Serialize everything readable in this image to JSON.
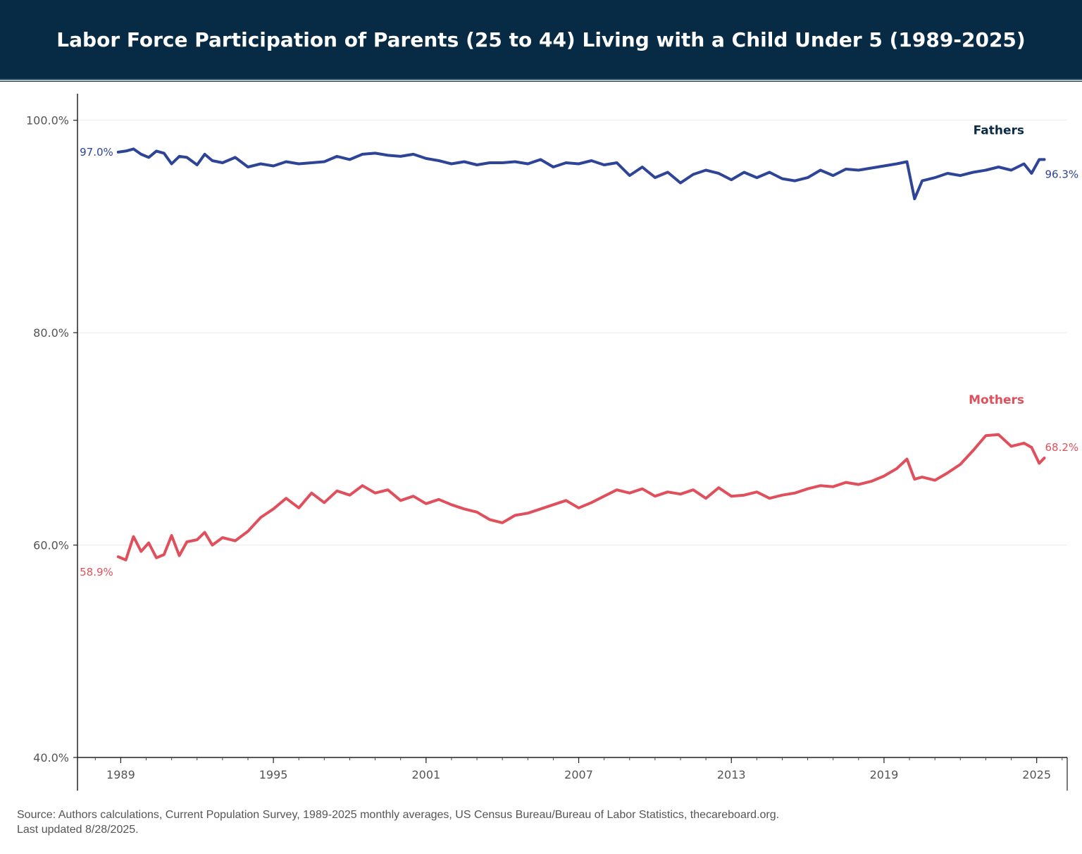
{
  "header": {
    "title": "Labor Force Participation of Parents (25 to 44) Living with a Child Under 5 (1989-2025)"
  },
  "footer": {
    "source": "Source: Authors calculations, Current Population Survey, 1989-2025 monthly averages, US Census Bureau/Bureau of Labor Statistics, thecareboard.org.",
    "updated": "Last updated 8/28/2025."
  },
  "chart_data": {
    "type": "line",
    "title": "Labor Force Participation of Parents (25 to 44) Living with a Child Under 5 (1989-2025)",
    "xlabel": "",
    "ylabel": "",
    "xlim": [
      1987.3,
      2026.2
    ],
    "ylim": [
      40,
      102.5
    ],
    "y_ticks": [
      {
        "value": 100,
        "label": "100.0%"
      },
      {
        "value": 80,
        "label": "80.0%"
      },
      {
        "value": 60,
        "label": "60.0%"
      },
      {
        "value": 40,
        "label": "40.0%"
      }
    ],
    "x_ticks": [
      {
        "value": 1989,
        "label": "1989"
      },
      {
        "value": 1995,
        "label": "1995"
      },
      {
        "value": 2001,
        "label": "2001"
      },
      {
        "value": 2007,
        "label": "2007"
      },
      {
        "value": 2013,
        "label": "2013"
      },
      {
        "value": 2019,
        "label": "2019"
      },
      {
        "value": 2025,
        "label": "2025"
      }
    ],
    "grid": "horizontal",
    "series": [
      {
        "name": "Fathers",
        "color": "#2e4496",
        "start_label": "97.0%",
        "end_label": "96.3%",
        "x": [
          1988.9,
          1989.2,
          1989.5,
          1989.8,
          1990.1,
          1990.4,
          1990.7,
          1991.0,
          1991.3,
          1991.6,
          1992.0,
          1992.3,
          1992.6,
          1993.0,
          1993.5,
          1994.0,
          1994.5,
          1995.0,
          1995.5,
          1996.0,
          1996.5,
          1997.0,
          1997.5,
          1998.0,
          1998.5,
          1999.0,
          1999.5,
          2000.0,
          2000.5,
          2001.0,
          2001.5,
          2002.0,
          2002.5,
          2003.0,
          2003.5,
          2004.0,
          2004.5,
          2005.0,
          2005.5,
          2006.0,
          2006.5,
          2007.0,
          2007.5,
          2008.0,
          2008.5,
          2009.0,
          2009.5,
          2010.0,
          2010.5,
          2011.0,
          2011.5,
          2012.0,
          2012.5,
          2013.0,
          2013.5,
          2014.0,
          2014.5,
          2015.0,
          2015.5,
          2016.0,
          2016.5,
          2017.0,
          2017.5,
          2018.0,
          2018.5,
          2019.0,
          2019.5,
          2019.9,
          2020.2,
          2020.5,
          2021.0,
          2021.5,
          2022.0,
          2022.5,
          2023.0,
          2023.5,
          2024.0,
          2024.5,
          2024.8,
          2025.1,
          2025.3
        ],
        "y": [
          97.0,
          97.1,
          97.3,
          96.8,
          96.5,
          97.1,
          96.9,
          95.9,
          96.6,
          96.5,
          95.8,
          96.8,
          96.2,
          96.0,
          96.5,
          95.6,
          95.9,
          95.7,
          96.1,
          95.9,
          96.0,
          96.1,
          96.6,
          96.3,
          96.8,
          96.9,
          96.7,
          96.6,
          96.8,
          96.4,
          96.2,
          95.9,
          96.1,
          95.8,
          96.0,
          96.0,
          96.1,
          95.9,
          96.3,
          95.6,
          96.0,
          95.9,
          96.2,
          95.8,
          96.0,
          94.8,
          95.6,
          94.6,
          95.1,
          94.1,
          94.9,
          95.3,
          95.0,
          94.4,
          95.1,
          94.6,
          95.1,
          94.5,
          94.3,
          94.6,
          95.3,
          94.8,
          95.4,
          95.3,
          95.5,
          95.7,
          95.9,
          96.1,
          92.6,
          94.3,
          94.6,
          95.0,
          94.8,
          95.1,
          95.3,
          95.6,
          95.3,
          95.9,
          95.0,
          96.3,
          96.3
        ]
      },
      {
        "name": "Mothers",
        "color": "#e0505c",
        "start_label": "58.9%",
        "end_label": "68.2%",
        "x": [
          1988.9,
          1989.2,
          1989.5,
          1989.8,
          1990.1,
          1990.4,
          1990.7,
          1991.0,
          1991.3,
          1991.6,
          1992.0,
          1992.3,
          1992.6,
          1993.0,
          1993.5,
          1994.0,
          1994.5,
          1995.0,
          1995.5,
          1996.0,
          1996.5,
          1997.0,
          1997.5,
          1998.0,
          1998.5,
          1999.0,
          1999.5,
          2000.0,
          2000.5,
          2001.0,
          2001.5,
          2002.0,
          2002.5,
          2003.0,
          2003.5,
          2004.0,
          2004.5,
          2005.0,
          2005.5,
          2006.0,
          2006.5,
          2007.0,
          2007.5,
          2008.0,
          2008.5,
          2009.0,
          2009.5,
          2010.0,
          2010.5,
          2011.0,
          2011.5,
          2012.0,
          2012.5,
          2013.0,
          2013.5,
          2014.0,
          2014.5,
          2015.0,
          2015.5,
          2016.0,
          2016.5,
          2017.0,
          2017.5,
          2018.0,
          2018.5,
          2019.0,
          2019.5,
          2019.9,
          2020.2,
          2020.5,
          2021.0,
          2021.5,
          2022.0,
          2022.5,
          2023.0,
          2023.5,
          2024.0,
          2024.5,
          2024.8,
          2025.1,
          2025.3
        ],
        "y": [
          58.9,
          58.6,
          60.8,
          59.4,
          60.2,
          58.8,
          59.1,
          60.9,
          59.0,
          60.3,
          60.5,
          61.2,
          60.0,
          60.7,
          60.4,
          61.3,
          62.6,
          63.4,
          64.4,
          63.5,
          64.9,
          64.0,
          65.1,
          64.7,
          65.6,
          64.9,
          65.2,
          64.2,
          64.6,
          63.9,
          64.3,
          63.8,
          63.4,
          63.1,
          62.4,
          62.1,
          62.8,
          63.0,
          63.4,
          63.8,
          64.2,
          63.5,
          64.0,
          64.6,
          65.2,
          64.9,
          65.3,
          64.6,
          65.0,
          64.8,
          65.2,
          64.4,
          65.4,
          64.6,
          64.7,
          65.0,
          64.4,
          64.7,
          64.9,
          65.3,
          65.6,
          65.5,
          65.9,
          65.7,
          66.0,
          66.5,
          67.2,
          68.1,
          66.2,
          66.4,
          66.1,
          66.8,
          67.6,
          68.9,
          70.3,
          70.4,
          69.3,
          69.6,
          69.2,
          67.7,
          68.2
        ]
      }
    ]
  }
}
